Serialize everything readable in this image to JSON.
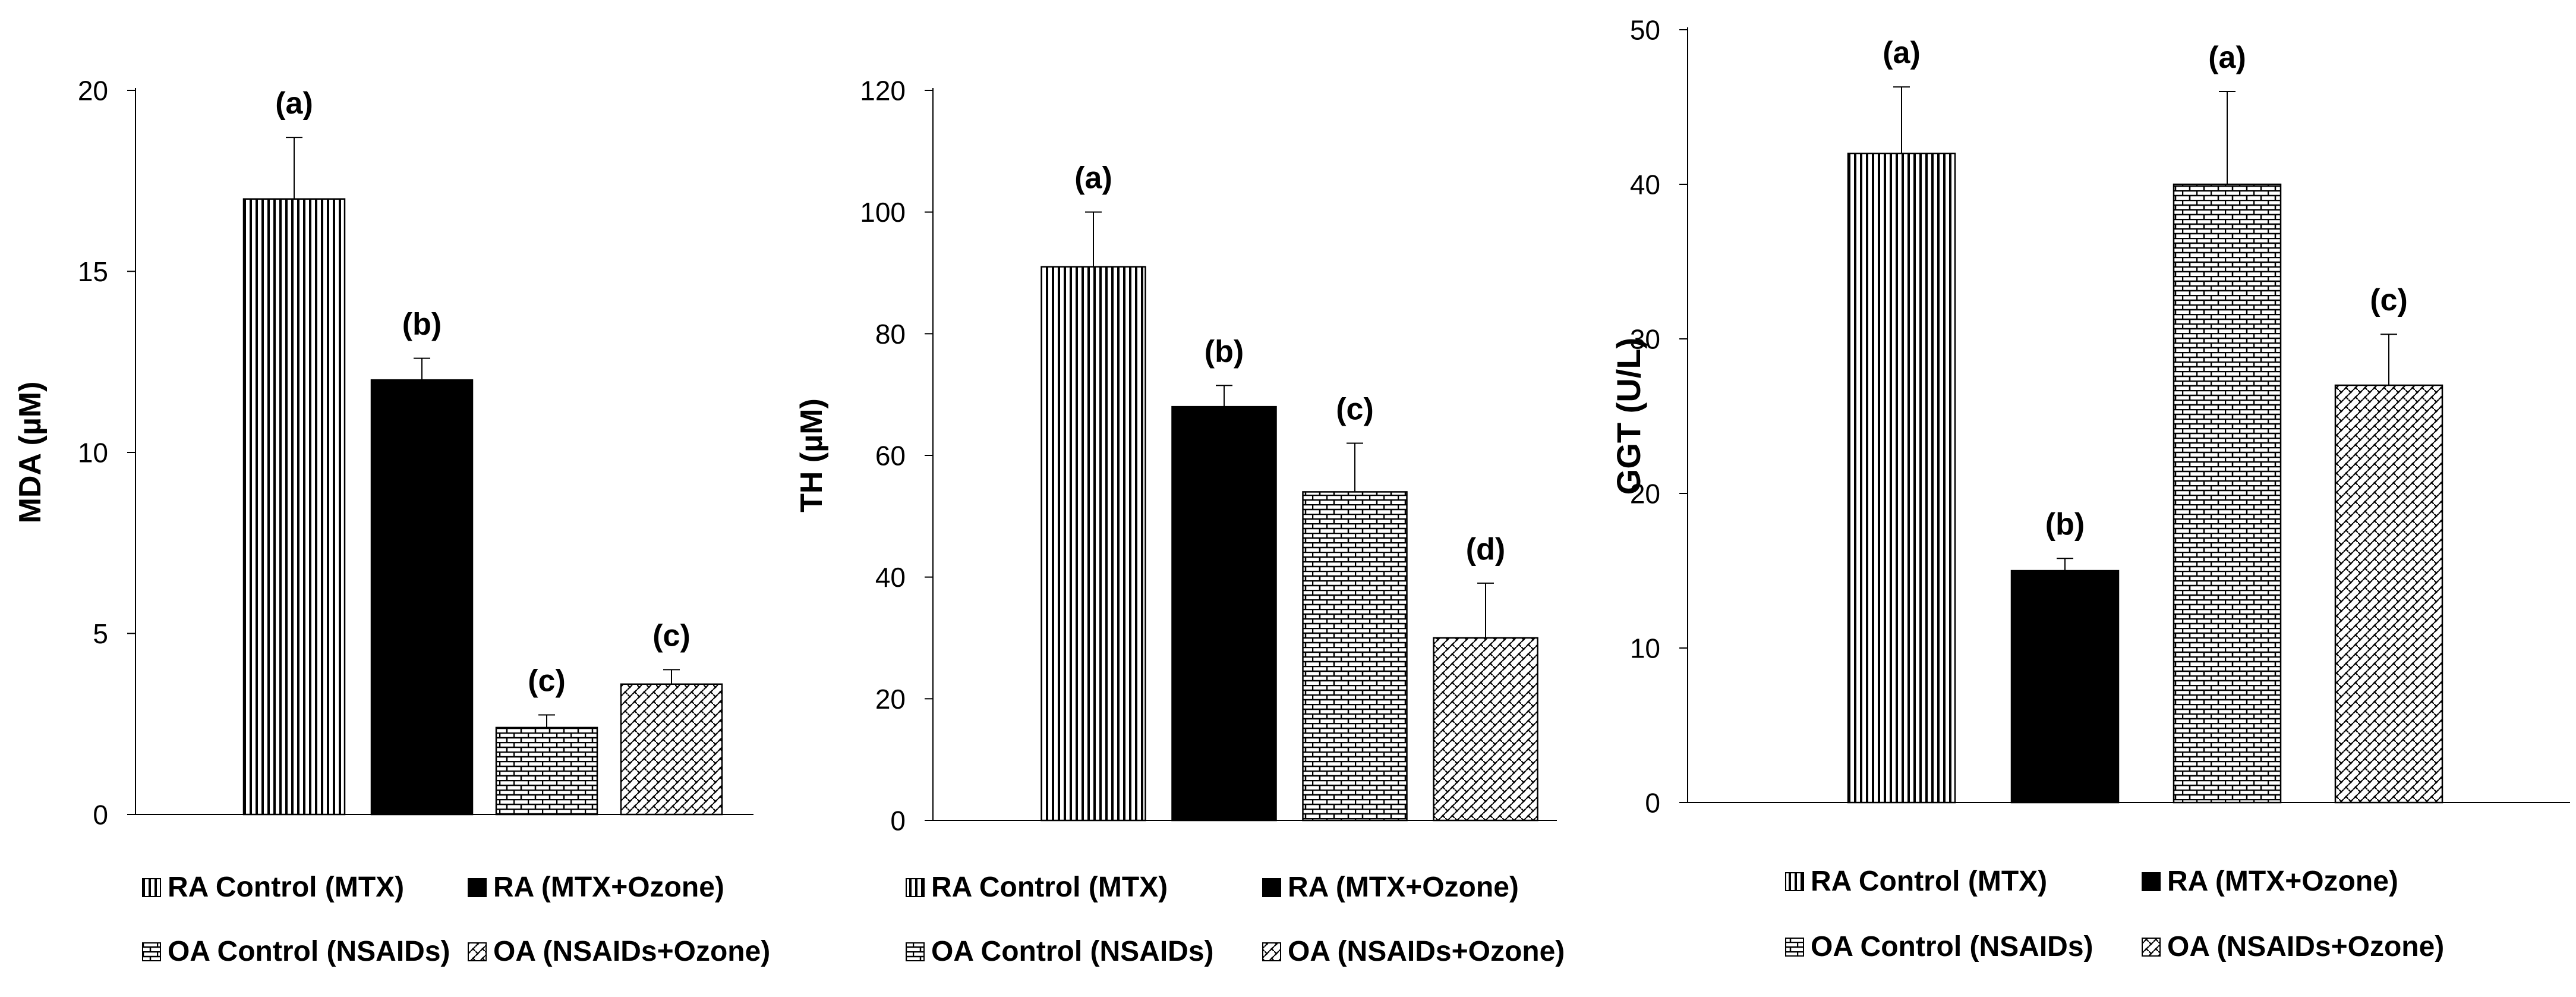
{
  "legend_entries": [
    {
      "label": "RA Control (MTX)",
      "pattern": "vlines"
    },
    {
      "label": "RA (MTX+Ozone)",
      "pattern": "solid"
    },
    {
      "label": "OA Control (NSAIDs)",
      "pattern": "brick"
    },
    {
      "label": "OA (NSAIDs+Ozone)",
      "pattern": "weave"
    }
  ],
  "chart_data": [
    {
      "type": "bar",
      "title": "",
      "xlabel": "",
      "ylabel": "MDA (µM)",
      "ylim": [
        0,
        20
      ],
      "yticks": [
        0,
        5,
        10,
        15,
        20
      ],
      "categories": [
        "RA Control (MTX)",
        "RA (MTX+Ozone)",
        "OA Control (NSAIDs)",
        "OA (NSAIDs+Ozone)"
      ],
      "values": [
        17.0,
        12.0,
        2.4,
        3.6
      ],
      "errors": [
        1.7,
        0.6,
        0.35,
        0.4
      ],
      "annotations": [
        "(a)",
        "(b)",
        "(c)",
        "(c)"
      ]
    },
    {
      "type": "bar",
      "title": "",
      "xlabel": "",
      "ylabel": "TH (µM)",
      "ylim": [
        0,
        120
      ],
      "yticks": [
        0,
        20,
        40,
        60,
        80,
        100,
        120
      ],
      "categories": [
        "RA Control (MTX)",
        "RA (MTX+Ozone)",
        "OA Control (NSAIDs)",
        "OA (NSAIDs+Ozone)"
      ],
      "values": [
        91,
        68,
        54,
        30
      ],
      "errors": [
        9,
        3.5,
        8,
        9
      ],
      "annotations": [
        "(a)",
        "(b)",
        "(c)",
        "(d)"
      ]
    },
    {
      "type": "bar",
      "title": "",
      "xlabel": "",
      "ylabel": "GGT (U/L)",
      "ylim": [
        0,
        50
      ],
      "yticks": [
        0,
        10,
        20,
        30,
        40,
        50
      ],
      "categories": [
        "RA Control (MTX)",
        "RA (MTX+Ozone)",
        "OA Control (NSAIDs)",
        "OA (NSAIDs+Ozone)"
      ],
      "values": [
        42,
        15,
        40,
        27
      ],
      "errors": [
        4.3,
        0.8,
        6,
        3.3
      ],
      "annotations": [
        "(a)",
        "(b)",
        "(a)",
        "(c)"
      ]
    }
  ]
}
